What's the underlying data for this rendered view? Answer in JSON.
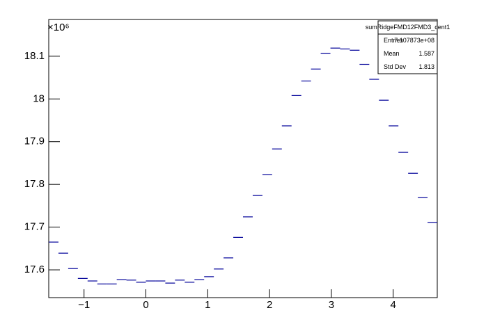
{
  "chart_data": {
    "type": "histogram",
    "multiplier": "×10⁶",
    "bins": [
      -1.5708,
      -1.4137,
      -1.2566,
      -1.0996,
      -0.9425,
      -0.7854,
      -0.6283,
      -0.4712,
      -0.3142,
      -0.1571,
      0,
      0.1571,
      0.3142,
      0.4712,
      0.6283,
      0.7854,
      0.9425,
      1.0996,
      1.2566,
      1.4137,
      1.5708,
      1.7279,
      1.885,
      2.042,
      2.1991,
      2.3562,
      2.5133,
      2.6704,
      2.8274,
      2.9845,
      3.1416,
      3.2987,
      3.4558,
      3.6128,
      3.7699,
      3.927,
      4.0841,
      4.2412,
      4.3982,
      4.5553,
      4.7124
    ],
    "values": [
      17.665,
      17.639,
      17.603,
      17.58,
      17.574,
      17.567,
      17.567,
      17.577,
      17.576,
      17.571,
      17.574,
      17.574,
      17.569,
      17.576,
      17.571,
      17.577,
      17.584,
      17.602,
      17.628,
      17.676,
      17.724,
      17.774,
      17.823,
      17.883,
      17.937,
      18.008,
      18.042,
      18.07,
      18.107,
      18.119,
      18.117,
      18.114,
      18.081,
      18.046,
      17.997,
      17.937,
      17.875,
      17.826,
      17.769,
      17.711
    ],
    "color": "#000099",
    "xlim": [
      -1.5708,
      4.7124
    ],
    "ylim": [
      17.535,
      18.186
    ],
    "xticks": [
      {
        "value": -1,
        "label": "−1"
      },
      0,
      1,
      2,
      3,
      4
    ],
    "yticks": [
      17.6,
      17.7,
      17.8,
      17.9,
      18,
      18.1
    ],
    "stats": {
      "title": "sumRidgeFMD12FMD3_cent1",
      "rows": [
        [
          "Entries",
          "7.107873e+08"
        ],
        [
          "Mean",
          "1.587"
        ],
        [
          "Std Dev",
          "1.813"
        ]
      ]
    }
  }
}
